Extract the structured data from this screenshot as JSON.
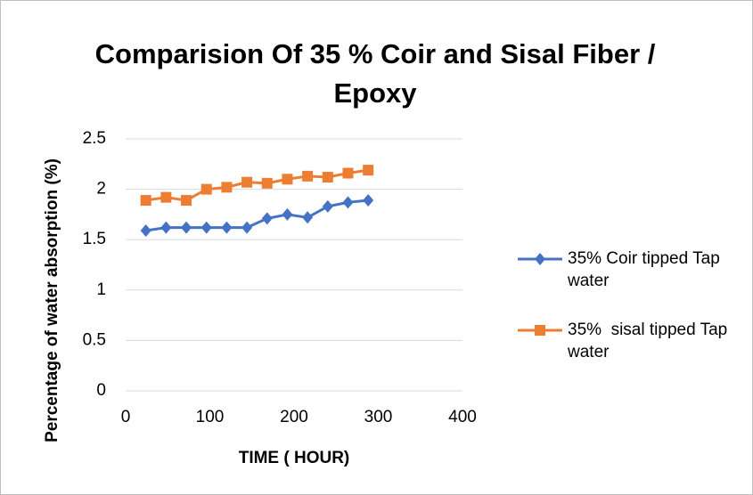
{
  "chart_data": {
    "type": "line",
    "title": "Comparision Of 35 % Coir and Sisal Fiber / Epoxy",
    "x_label": "TIME ( HOUR)",
    "y_label": "Percentage of water absorption (%)",
    "xlim": [
      0,
      400
    ],
    "xticks": [
      0,
      100,
      200,
      300,
      400
    ],
    "ylim": [
      0,
      2.5
    ],
    "yticks": [
      0,
      0.5,
      1,
      1.5,
      2,
      2.5
    ],
    "grid": true,
    "legend": "right",
    "x": [
      24,
      48,
      72,
      96,
      120,
      144,
      168,
      192,
      216,
      240,
      264,
      288
    ],
    "series": [
      {
        "name": "35% Coir tipped Tap water",
        "color": "#4472c4",
        "marker": "diamond",
        "values": [
          1.59,
          1.62,
          1.62,
          1.62,
          1.62,
          1.62,
          1.71,
          1.75,
          1.72,
          1.83,
          1.87,
          1.89
        ]
      },
      {
        "name": "35%  sisal tipped Tap water",
        "color": "#ed7d31",
        "marker": "square",
        "values": [
          1.89,
          1.92,
          1.89,
          2.0,
          2.02,
          2.07,
          2.06,
          2.1,
          2.13,
          2.12,
          2.16,
          2.19
        ]
      }
    ]
  }
}
